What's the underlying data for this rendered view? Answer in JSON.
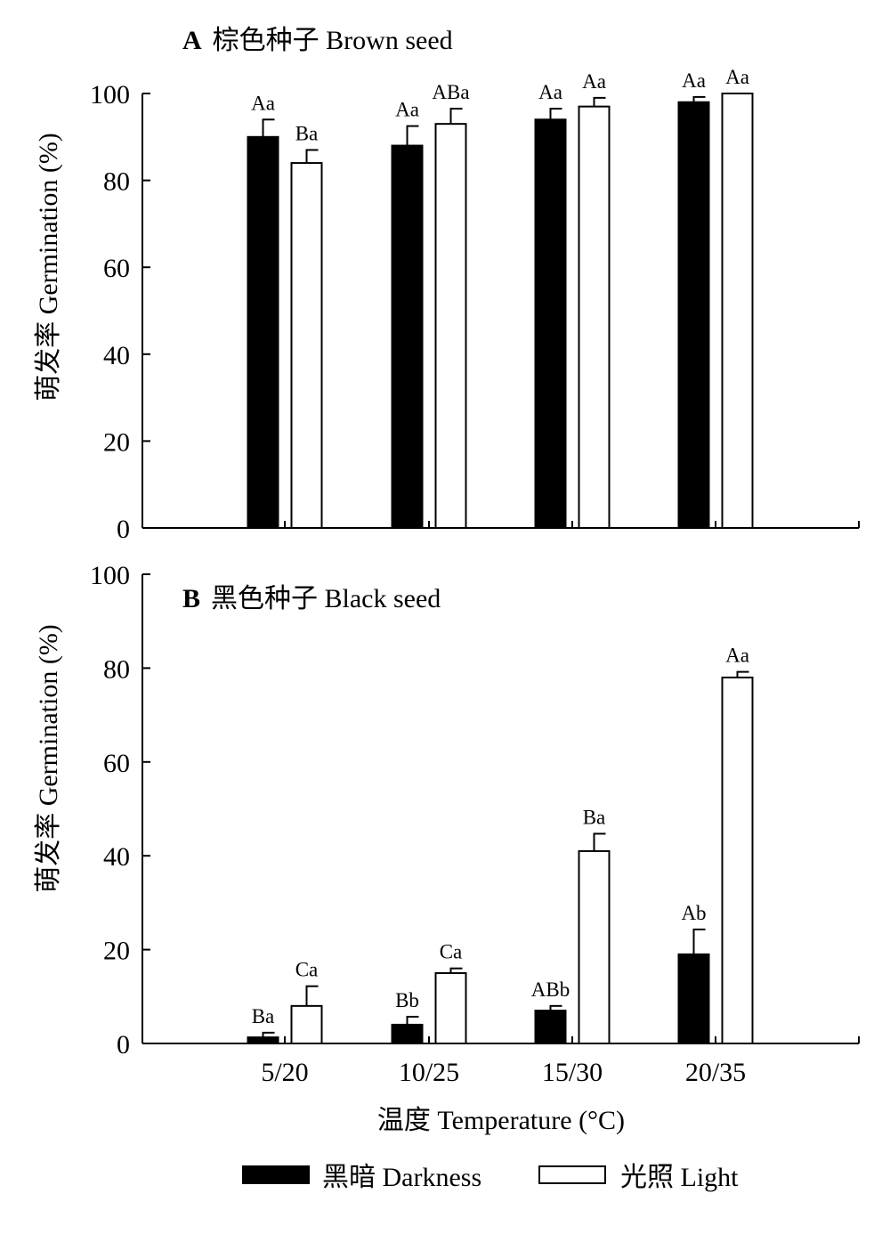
{
  "chart_data": [
    {
      "panel": "A",
      "type": "bar",
      "title": "棕色种子  Brown seed",
      "ylabel": "萌发率  Germination (%)",
      "ylim": [
        0,
        100
      ],
      "yticks": [
        0,
        20,
        40,
        60,
        80,
        100
      ],
      "categories": [
        "5/20",
        "10/25",
        "15/30",
        "20/35"
      ],
      "series": [
        {
          "name": "黑暗  Darkness",
          "color": "#000000",
          "values": [
            90,
            88,
            94,
            98
          ],
          "errors": [
            4,
            4.5,
            2.5,
            1.2
          ],
          "labels": [
            "Aa",
            "Aa",
            "Aa",
            "Aa"
          ]
        },
        {
          "name": "光照  Light",
          "color": "#ffffff",
          "values": [
            84,
            93,
            97,
            100
          ],
          "errors": [
            3,
            3.5,
            2,
            0
          ],
          "labels": [
            "Ba",
            "ABa",
            "Aa",
            "Aa"
          ]
        }
      ]
    },
    {
      "panel": "B",
      "type": "bar",
      "title": "黑色种子  Black seed",
      "ylabel": "萌发率  Germination (%)",
      "ylim": [
        0,
        100
      ],
      "yticks": [
        0,
        20,
        40,
        60,
        80,
        100
      ],
      "categories": [
        "5/20",
        "10/25",
        "15/30",
        "20/35"
      ],
      "series": [
        {
          "name": "黑暗  Darkness",
          "color": "#000000",
          "values": [
            1.3,
            4,
            7,
            19
          ],
          "errors": [
            1,
            1.7,
            1,
            5.3
          ],
          "labels": [
            "Ba",
            "Bb",
            "ABb",
            "Ab"
          ]
        },
        {
          "name": "光照  Light",
          "color": "#ffffff",
          "values": [
            8,
            15,
            41,
            78
          ],
          "errors": [
            4.2,
            1,
            3.7,
            1.2
          ],
          "labels": [
            "Ca",
            "Ca",
            "Ba",
            "Aa"
          ]
        }
      ]
    }
  ],
  "xlabel": "温度  Temperature (°C)",
  "legend": [
    {
      "label": "黑暗  Darkness",
      "color": "#000000"
    },
    {
      "label": "光照  Light",
      "color": "#ffffff"
    }
  ]
}
